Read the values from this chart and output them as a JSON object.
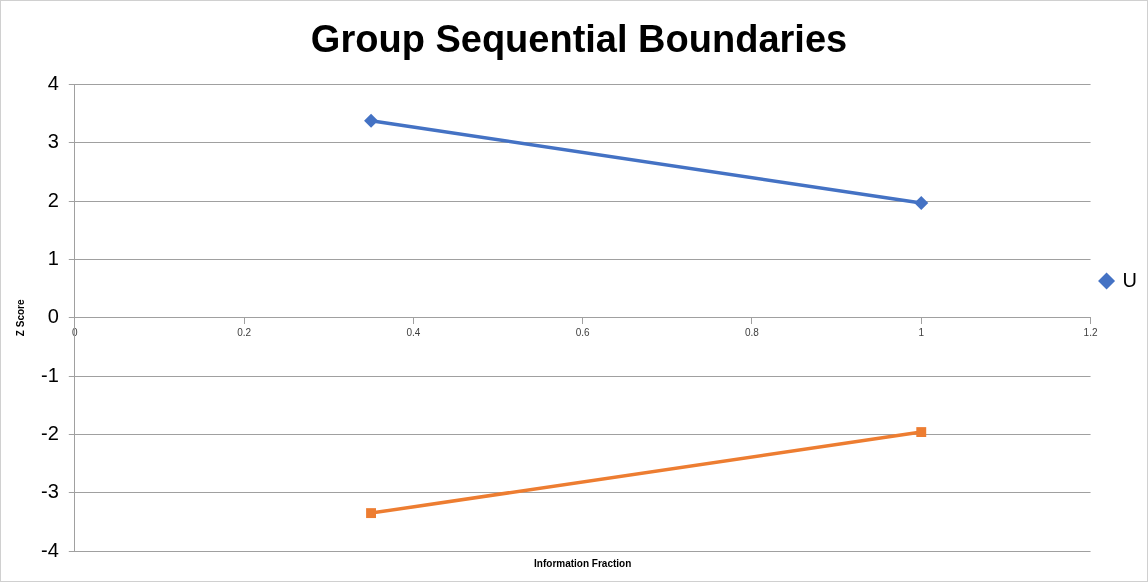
{
  "chart_data": {
    "type": "line",
    "title": "Group Sequential Boundaries",
    "xlabel": "Information Fraction",
    "ylabel": "Z Score",
    "x": [
      0.35,
      1
    ],
    "series": [
      {
        "name": "U",
        "color": "#4472c4",
        "marker": "diamond",
        "values": [
          3.38,
          1.97
        ]
      },
      {
        "color": "#ed7d31",
        "marker": "square",
        "values": [
          -3.35,
          -1.96
        ]
      }
    ],
    "xlim": [
      0,
      1.2
    ],
    "xticks": [
      0,
      0.2,
      0.4,
      0.6,
      0.8,
      1,
      1.2
    ],
    "ylim": [
      -4,
      4
    ],
    "yticks": [
      -4,
      -3,
      -2,
      -1,
      0,
      1,
      2,
      3,
      4
    ],
    "grid": "y",
    "legend": "right"
  }
}
